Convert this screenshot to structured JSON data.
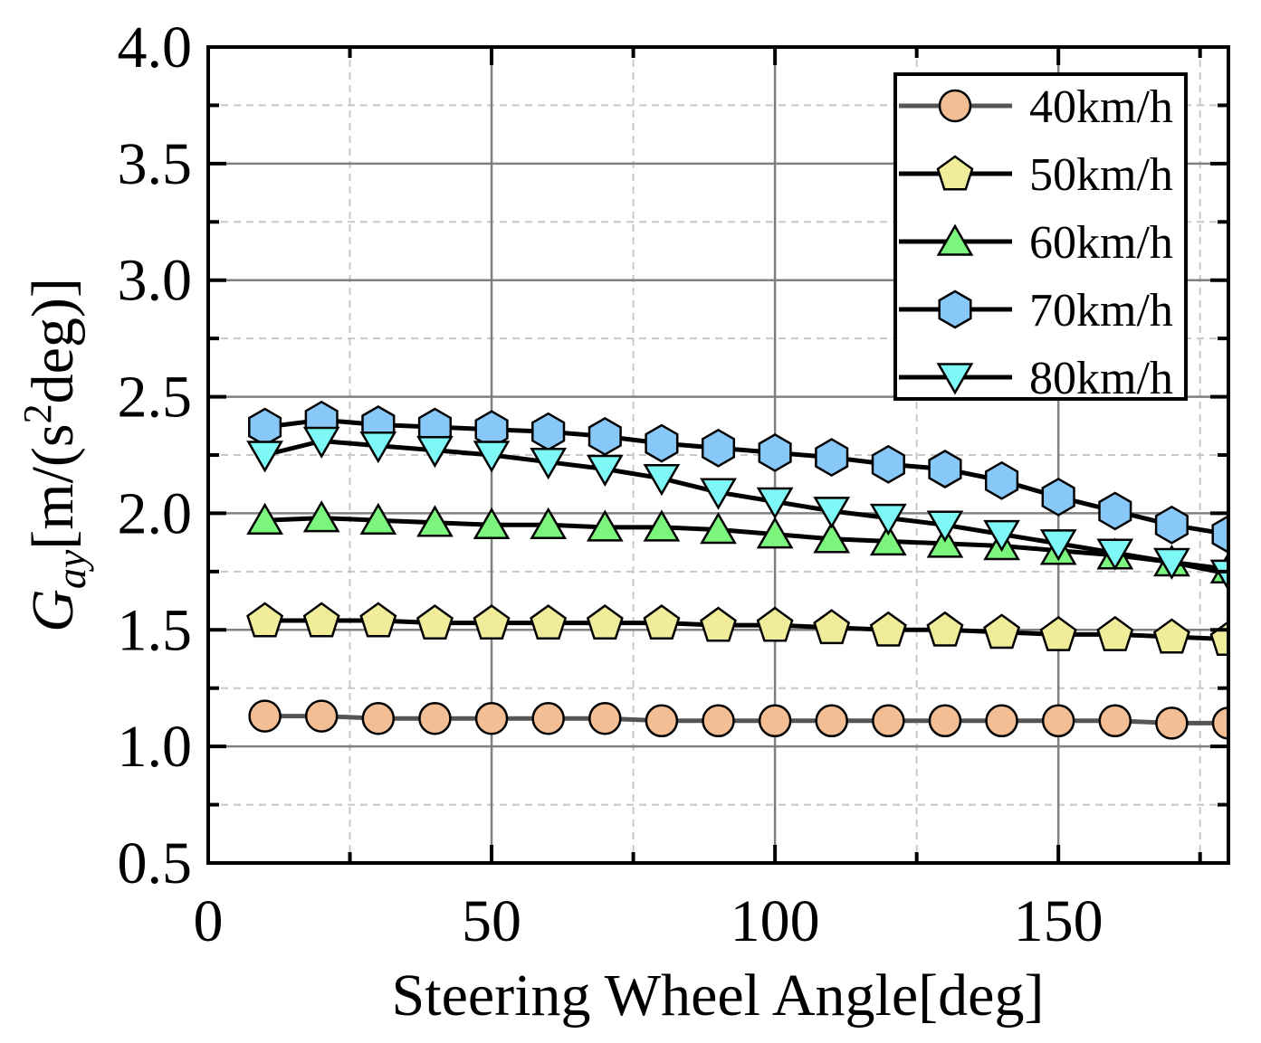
{
  "chart_data": {
    "type": "line",
    "title": "",
    "xlabel": "Steering Wheel Angle[deg]",
    "ylabel": {
      "symbol": "G",
      "subscript": "ay",
      "unit_prefix": "[m/(s",
      "unit_superscript": "2",
      "unit_suffix": "deg)]"
    },
    "xlim": [
      0,
      180
    ],
    "ylim": [
      0.5,
      4.0
    ],
    "x_ticks": [
      0,
      50,
      100,
      150
    ],
    "x_tick_labels": [
      "0",
      "50",
      "100",
      "150"
    ],
    "y_ticks": [
      0.5,
      1.0,
      1.5,
      2.0,
      2.5,
      3.0,
      3.5,
      4.0
    ],
    "y_tick_labels": [
      "0.5",
      "1.0",
      "1.5",
      "2.0",
      "2.5",
      "3.0",
      "3.5",
      "4.0"
    ],
    "x_minor_ticks": [
      25,
      75,
      125,
      175
    ],
    "y_minor_ticks": [
      0.75,
      1.25,
      1.75,
      2.25,
      2.75,
      3.25,
      3.75
    ],
    "grid": true,
    "legend_position": "top-right",
    "x": [
      10,
      20,
      30,
      40,
      50,
      60,
      70,
      80,
      90,
      100,
      110,
      120,
      130,
      140,
      150,
      160,
      170,
      180
    ],
    "series": [
      {
        "name": "40km/h",
        "marker": "circle",
        "fill": "#F4BE94",
        "line": "#555555",
        "values": [
          1.13,
          1.13,
          1.12,
          1.12,
          1.12,
          1.12,
          1.12,
          1.11,
          1.11,
          1.11,
          1.11,
          1.11,
          1.11,
          1.11,
          1.11,
          1.11,
          1.1,
          1.1
        ]
      },
      {
        "name": "50km/h",
        "marker": "pentagon",
        "fill": "#F0EC9A",
        "line": "#000000",
        "values": [
          1.54,
          1.54,
          1.54,
          1.53,
          1.53,
          1.53,
          1.53,
          1.53,
          1.52,
          1.52,
          1.51,
          1.5,
          1.5,
          1.49,
          1.48,
          1.48,
          1.47,
          1.46
        ]
      },
      {
        "name": "60km/h",
        "marker": "triangle-up",
        "fill": "#7CF57C",
        "line": "#000000",
        "values": [
          1.97,
          1.98,
          1.97,
          1.96,
          1.95,
          1.95,
          1.94,
          1.94,
          1.93,
          1.91,
          1.89,
          1.88,
          1.87,
          1.86,
          1.84,
          1.82,
          1.79,
          1.76
        ]
      },
      {
        "name": "70km/h",
        "marker": "hexagon",
        "fill": "#88C8F8",
        "line": "#000000",
        "values": [
          2.37,
          2.4,
          2.38,
          2.37,
          2.36,
          2.35,
          2.33,
          2.3,
          2.28,
          2.26,
          2.24,
          2.21,
          2.19,
          2.14,
          2.07,
          2.01,
          1.95,
          1.91
        ]
      },
      {
        "name": "80km/h",
        "marker": "triangle-down",
        "fill": "#7EF7F7",
        "line": "#000000",
        "values": [
          2.25,
          2.31,
          2.29,
          2.27,
          2.25,
          2.22,
          2.19,
          2.15,
          2.09,
          2.05,
          2.01,
          1.98,
          1.95,
          1.91,
          1.87,
          1.83,
          1.79,
          1.74
        ]
      }
    ]
  }
}
